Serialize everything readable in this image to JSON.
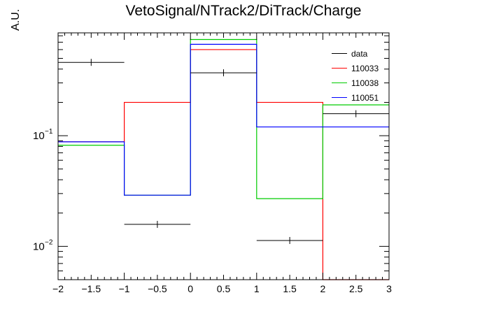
{
  "chart_data": {
    "type": "histogram",
    "title": "VetoSignal/NTrack2/DiTrack/Charge",
    "xlabel": "",
    "ylabel": "A.U.",
    "xlim": [
      -2,
      3
    ],
    "ylim": [
      0.005,
      0.85
    ],
    "yscale": "log",
    "grid": false,
    "legend_position": "top-right",
    "bin_edges": [
      -2,
      -1,
      0,
      1,
      2,
      3
    ],
    "x_ticks": [
      "−2",
      "−1.5",
      "−1",
      "−0.5",
      "0",
      "0.5",
      "1",
      "1.5",
      "2",
      "2.5",
      "3"
    ],
    "y_ticks": [
      "10",
      "10"
    ],
    "y_tick_exponents": [
      "−2",
      "−1"
    ],
    "series": [
      {
        "name": "data",
        "color": "#000000",
        "style": "points",
        "values": [
          0.46,
          0.0158,
          0.37,
          0.0113,
          0.158
        ]
      },
      {
        "name": "110033",
        "color": "#ff0000",
        "style": "step",
        "values": [
          0.088,
          0.2,
          0.6,
          0.2,
          0.0
        ]
      },
      {
        "name": "110038",
        "color": "#00cc00",
        "style": "step",
        "values": [
          0.082,
          0.029,
          0.74,
          0.027,
          0.19
        ]
      },
      {
        "name": "110051",
        "color": "#0000ff",
        "style": "step",
        "values": [
          0.088,
          0.029,
          0.67,
          0.12,
          0.12
        ]
      }
    ]
  }
}
